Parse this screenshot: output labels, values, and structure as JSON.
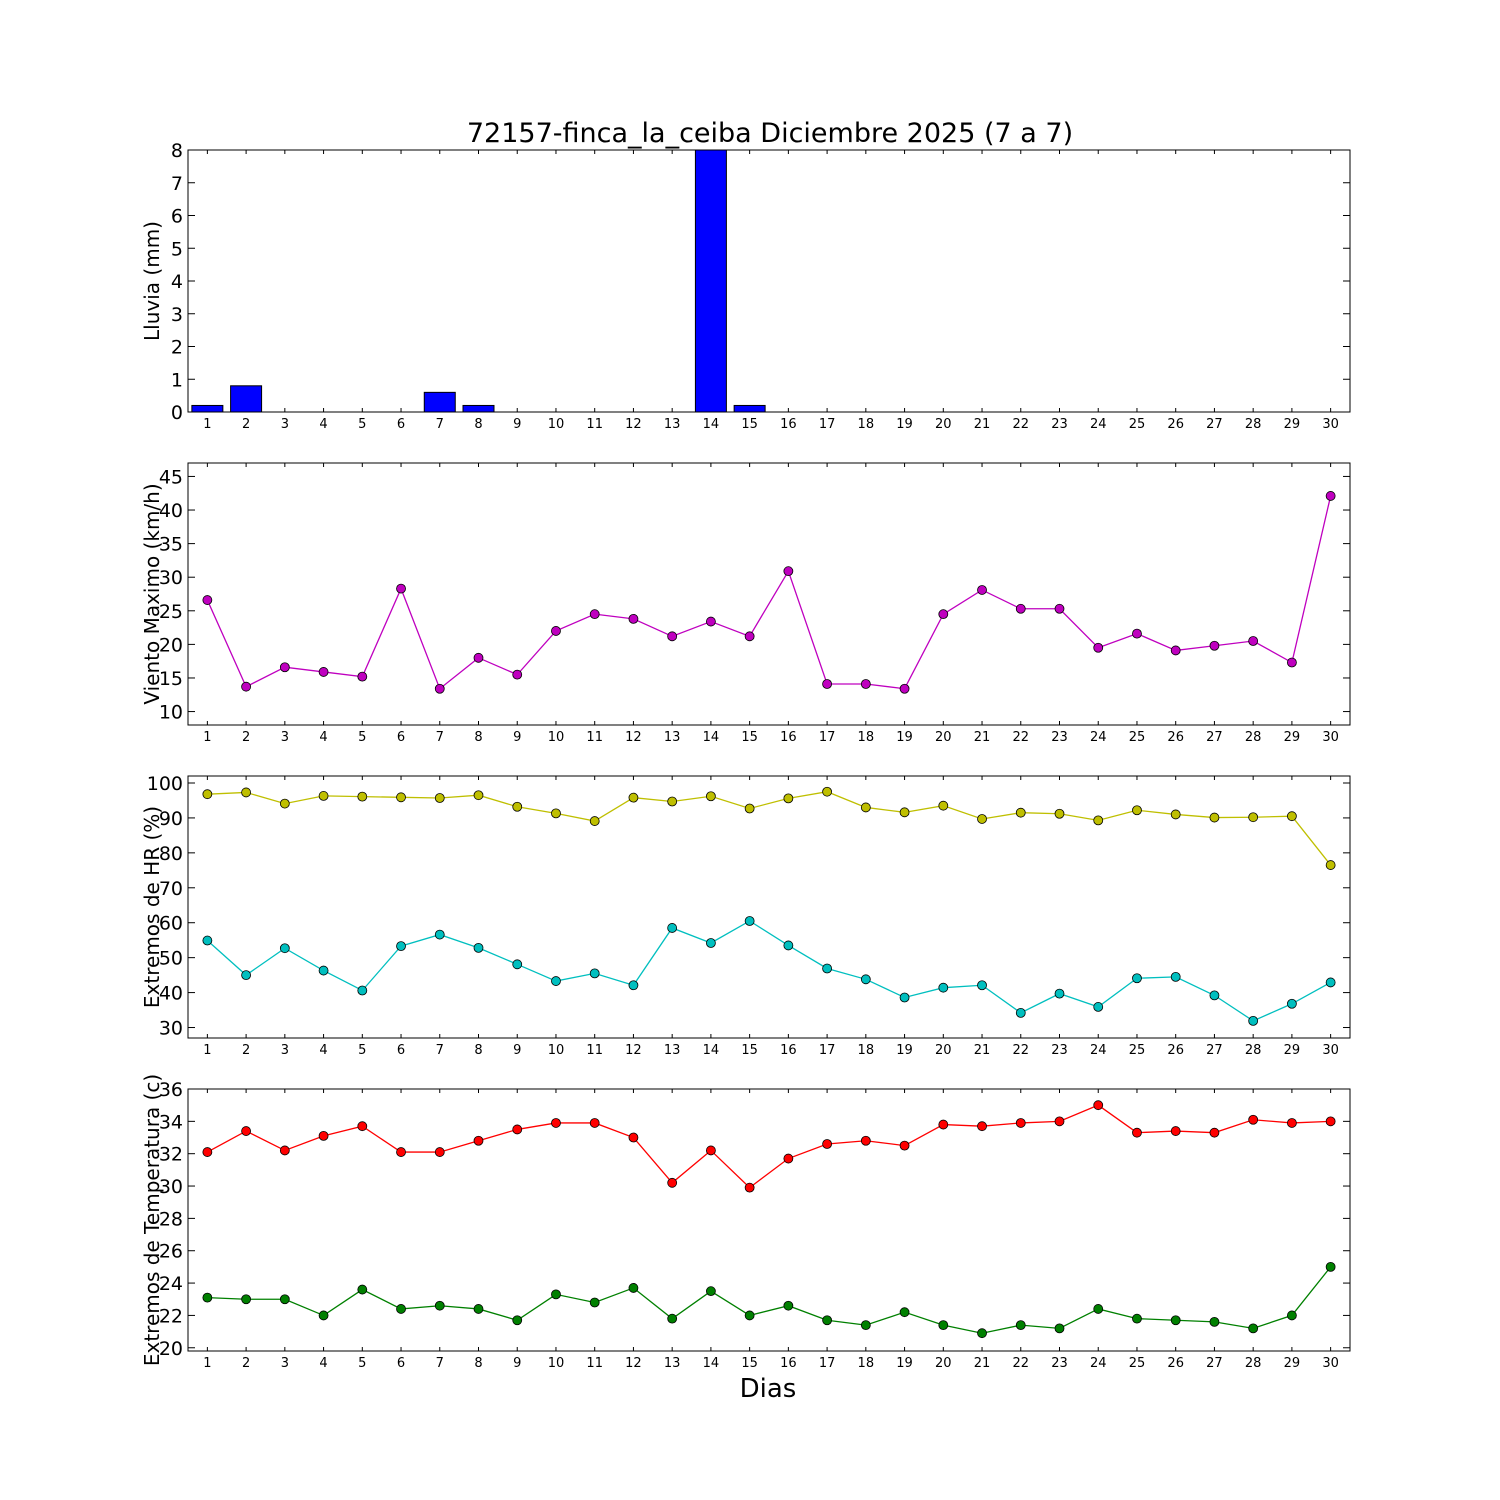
{
  "title": "72157-finca_la_ceiba Diciembre 2025  (7 a 7)",
  "xlabel": "Dias",
  "chart_data": [
    {
      "type": "bar",
      "ylabel": "Lluvia (mm)",
      "ylim": [
        0,
        8
      ],
      "yticks": [
        0,
        1,
        2,
        3,
        4,
        5,
        6,
        7,
        8
      ],
      "categories": [
        "1",
        "2",
        "3",
        "4",
        "5",
        "6",
        "7",
        "8",
        "9",
        "10",
        "11",
        "12",
        "13",
        "14",
        "15",
        "16",
        "17",
        "18",
        "19",
        "20",
        "21",
        "22",
        "23",
        "24",
        "25",
        "26",
        "27",
        "28",
        "29",
        "30"
      ],
      "series": [
        {
          "color": "#0000ff",
          "values": [
            0.2,
            0.8,
            0,
            0,
            0,
            0,
            0.6,
            0.2,
            0,
            0,
            0,
            0,
            0,
            8,
            0.2,
            0,
            0,
            0,
            0,
            0,
            0,
            0,
            0,
            0,
            0,
            0,
            0,
            0,
            0,
            0
          ]
        }
      ]
    },
    {
      "type": "line",
      "ylabel": "Viento Maximo (km/h)",
      "ylim": [
        8,
        47
      ],
      "yticks": [
        10,
        15,
        20,
        25,
        30,
        35,
        40,
        45
      ],
      "categories": [
        "1",
        "2",
        "3",
        "4",
        "5",
        "6",
        "7",
        "8",
        "9",
        "10",
        "11",
        "12",
        "13",
        "14",
        "15",
        "16",
        "17",
        "18",
        "19",
        "20",
        "21",
        "22",
        "23",
        "24",
        "25",
        "26",
        "27",
        "28",
        "29",
        "30"
      ],
      "series": [
        {
          "color": "#bf00bf",
          "values": [
            26.6,
            13.7,
            16.6,
            15.9,
            15.2,
            28.3,
            13.4,
            18.0,
            15.5,
            22.0,
            24.5,
            23.8,
            21.2,
            23.4,
            21.2,
            30.9,
            14.1,
            14.1,
            13.4,
            24.5,
            28.1,
            25.3,
            25.3,
            19.5,
            21.6,
            19.1,
            19.8,
            20.5,
            17.3,
            42.1
          ]
        }
      ]
    },
    {
      "type": "line",
      "ylabel": "Extremos de HR (%)",
      "ylim": [
        27,
        102
      ],
      "yticks": [
        30,
        40,
        50,
        60,
        70,
        80,
        90,
        100
      ],
      "categories": [
        "1",
        "2",
        "3",
        "4",
        "5",
        "6",
        "7",
        "8",
        "9",
        "10",
        "11",
        "12",
        "13",
        "14",
        "15",
        "16",
        "17",
        "18",
        "19",
        "20",
        "21",
        "22",
        "23",
        "24",
        "25",
        "26",
        "27",
        "28",
        "29",
        "30"
      ],
      "series": [
        {
          "color": "#bfbf00",
          "values": [
            96.8,
            97.3,
            94.1,
            96.3,
            96.1,
            95.9,
            95.7,
            96.5,
            93.2,
            91.3,
            89.1,
            95.8,
            94.7,
            96.2,
            92.7,
            95.6,
            97.5,
            93.0,
            91.6,
            93.5,
            89.7,
            91.5,
            91.2,
            89.3,
            92.2,
            91.0,
            90.1,
            90.2,
            90.5,
            76.5
          ]
        },
        {
          "color": "#00bfbf",
          "values": [
            54.9,
            45.0,
            52.7,
            46.3,
            40.6,
            53.3,
            56.6,
            52.8,
            48.1,
            43.3,
            45.5,
            42.1,
            58.5,
            54.2,
            60.5,
            53.5,
            46.9,
            43.8,
            38.6,
            41.4,
            42.1,
            34.2,
            39.7,
            35.9,
            44.1,
            44.5,
            39.2,
            31.9,
            36.8,
            42.9
          ]
        }
      ]
    },
    {
      "type": "line",
      "ylabel": "Extremos de Temperatura (c)",
      "ylim": [
        19.8,
        36
      ],
      "yticks": [
        20,
        22,
        24,
        26,
        28,
        30,
        32,
        34,
        36
      ],
      "categories": [
        "1",
        "2",
        "3",
        "4",
        "5",
        "6",
        "7",
        "8",
        "9",
        "10",
        "11",
        "12",
        "13",
        "14",
        "15",
        "16",
        "17",
        "18",
        "19",
        "20",
        "21",
        "22",
        "23",
        "24",
        "25",
        "26",
        "27",
        "28",
        "29",
        "30"
      ],
      "series": [
        {
          "color": "#ff0000",
          "values": [
            32.1,
            33.4,
            32.2,
            33.1,
            33.7,
            32.1,
            32.1,
            32.8,
            33.5,
            33.9,
            33.9,
            33.0,
            30.2,
            32.2,
            29.9,
            31.7,
            32.6,
            32.8,
            32.5,
            33.8,
            33.7,
            33.9,
            34.0,
            35.0,
            33.3,
            33.4,
            33.3,
            34.1,
            33.9,
            34.0
          ]
        },
        {
          "color": "#008000",
          "values": [
            23.1,
            23.0,
            23.0,
            22.0,
            23.6,
            22.4,
            22.6,
            22.4,
            21.7,
            23.3,
            22.8,
            23.7,
            21.8,
            23.5,
            22.0,
            22.6,
            21.7,
            21.4,
            22.2,
            21.4,
            20.9,
            21.4,
            21.2,
            22.4,
            21.8,
            21.7,
            21.6,
            21.2,
            22.0,
            25.0
          ]
        }
      ]
    }
  ]
}
